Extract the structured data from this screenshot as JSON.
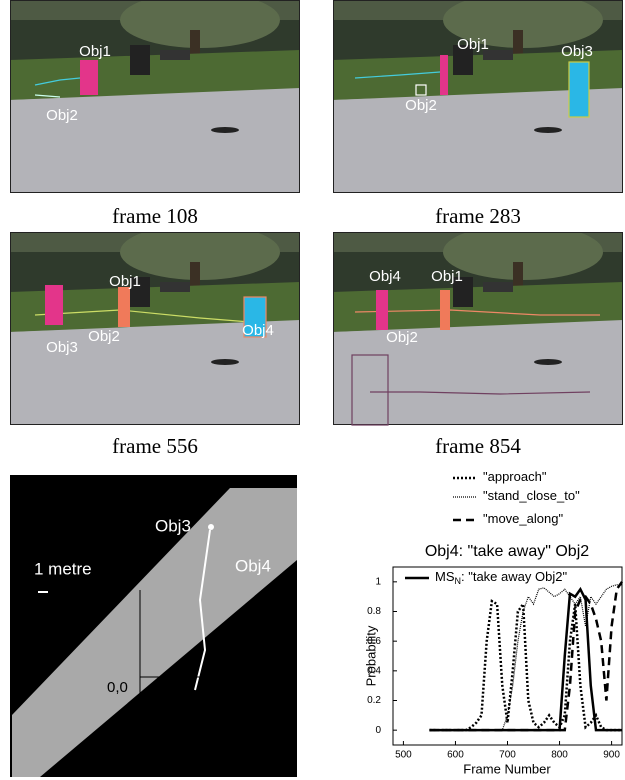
{
  "frames": [
    {
      "caption": "frame 108",
      "labels": [
        "Obj1",
        "Obj2"
      ]
    },
    {
      "caption": "frame 283",
      "labels": [
        "Obj1",
        "Obj2",
        "Obj3"
      ]
    },
    {
      "caption": "frame 556",
      "labels": [
        "Obj1",
        "Obj3",
        "Obj2",
        "Obj4"
      ]
    },
    {
      "caption": "frame 854",
      "labels": [
        "Obj4",
        "Obj1",
        "Obj2"
      ]
    }
  ],
  "map": {
    "scale_label": "1 metre",
    "labels": [
      "Obj3",
      "Obj4"
    ],
    "origin_label": "0,0"
  },
  "chart_data": {
    "type": "line",
    "title": "Obj4: \"take away\" Obj2",
    "x_label": "Frame Number",
    "y_label": "Probability",
    "x": [
      550,
      560,
      570,
      580,
      590,
      600,
      610,
      620,
      630,
      640,
      650,
      660,
      670,
      680,
      690,
      700,
      710,
      720,
      730,
      740,
      750,
      760,
      770,
      780,
      790,
      800,
      810,
      820,
      830,
      840,
      850,
      860,
      870,
      880,
      890,
      900,
      910,
      920
    ],
    "series": [
      {
        "name": "\"approach\"",
        "color": "#000000",
        "style": "dotted",
        "values": [
          0,
          0,
          0,
          0,
          0,
          0,
          0,
          0,
          0.02,
          0.05,
          0.1,
          0.6,
          0.87,
          0.85,
          0.3,
          0.05,
          0.4,
          0.8,
          0.85,
          0.2,
          0.05,
          0.02,
          0.05,
          0.1,
          0.05,
          0.02,
          0.1,
          0.6,
          0.85,
          0.3,
          0.02,
          0.05,
          0.1,
          0.02,
          0,
          0,
          0,
          0
        ]
      },
      {
        "name": "\"stand_close_to\"",
        "color": "#000000",
        "style": "fine-dotted",
        "values": [
          0,
          0,
          0,
          0,
          0,
          0,
          0,
          0,
          0,
          0,
          0,
          0,
          0,
          0,
          0,
          0.1,
          0.3,
          0.6,
          0.8,
          0.9,
          0.85,
          0.95,
          0.96,
          0.93,
          0.9,
          0.92,
          0.95,
          0.9,
          0.85,
          0.9,
          0.7,
          0.9,
          0.85,
          0.9,
          0.95,
          0.97,
          0.98,
          0.98
        ]
      },
      {
        "name": "\"move_along\"",
        "color": "#000000",
        "style": "dashed",
        "values": [
          0,
          0,
          0,
          0,
          0,
          0,
          0,
          0,
          0,
          0,
          0,
          0,
          0,
          0,
          0,
          0,
          0,
          0,
          0,
          0,
          0,
          0,
          0,
          0,
          0,
          0,
          0,
          0.3,
          0.8,
          0.88,
          0.9,
          0.85,
          0.75,
          0.6,
          0.2,
          0.7,
          0.95,
          1
        ]
      },
      {
        "name": "MS",
        "name_subscript": "N",
        "name_rest": ": \"take away Obj2\"",
        "color": "#000000",
        "style": "solid",
        "values": [
          0,
          0,
          0,
          0,
          0,
          0,
          0,
          0,
          0,
          0,
          0,
          0,
          0,
          0,
          0,
          0,
          0,
          0,
          0,
          0,
          0,
          0,
          0,
          0,
          0,
          0,
          0.5,
          0.92,
          0.9,
          0.95,
          0.88,
          0.3,
          0,
          0,
          0,
          0,
          0,
          0
        ]
      }
    ],
    "xlim": [
      480,
      920
    ],
    "ylim": [
      -0.1,
      1.1
    ],
    "xticks": [
      500,
      600,
      700,
      800,
      900
    ],
    "yticks": [
      0,
      0.2,
      0.4,
      0.6,
      0.8,
      1
    ]
  }
}
